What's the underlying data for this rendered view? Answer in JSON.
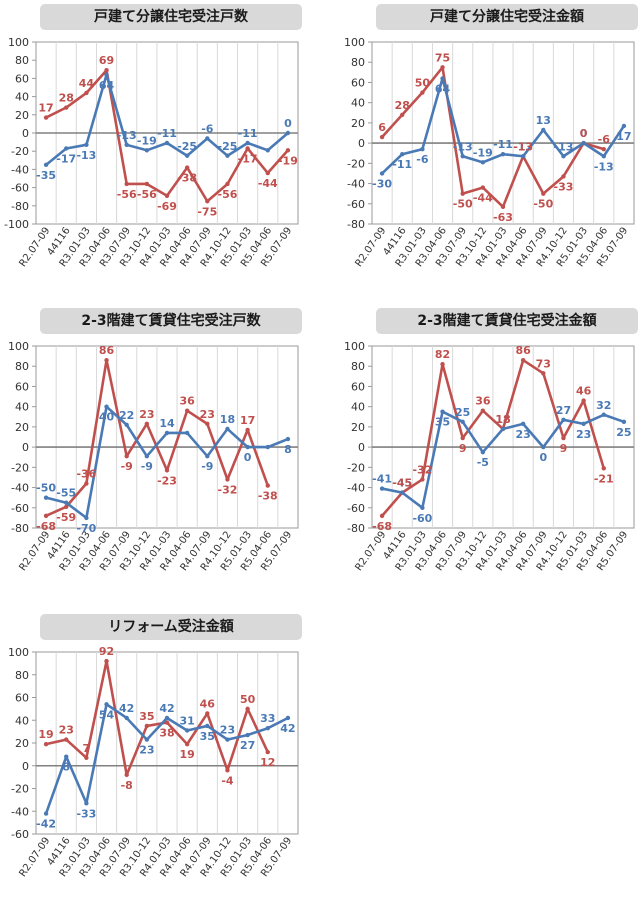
{
  "categories": [
    "R2.07-09",
    "44116",
    "R3.01-03",
    "R3.04-06",
    "R3.07-09",
    "R3.10-12",
    "R4.01-03",
    "R4.04-06",
    "R4.07-09",
    "R4.10-12",
    "R5.01-03",
    "R5.04-06",
    "R5.07-09"
  ],
  "colors": {
    "blue": "#4a7ab5",
    "red": "#c0504d"
  },
  "chart_data": [
    {
      "type": "line",
      "title": "戸建て分譲住宅受注戸数",
      "ylim": [
        -100,
        100
      ],
      "yticks": [
        -100,
        -80,
        -60,
        -40,
        -20,
        0,
        20,
        40,
        60,
        80,
        100
      ],
      "series": [
        {
          "color": "blue",
          "values": [
            -35,
            -17,
            -13,
            64,
            -13,
            -19,
            -11,
            -25,
            -6,
            -25,
            -11,
            -19,
            0
          ],
          "labels": [
            "-35",
            "-17",
            "-13",
            "64",
            "-13",
            "-19",
            "-11",
            "-25",
            "-6",
            "-25",
            "-11",
            "",
            "0"
          ]
        },
        {
          "color": "red",
          "values": [
            17,
            28,
            44,
            69,
            -56,
            -56,
            -69,
            -38,
            -75,
            -56,
            -17,
            -44,
            -19
          ],
          "labels": [
            "17",
            "28",
            "44",
            "69",
            "-56",
            "-56",
            "-69",
            "-38",
            "-75",
            "-56",
            "-17",
            "-44",
            "-19"
          ]
        }
      ]
    },
    {
      "type": "line",
      "title": "戸建て分譲住宅受注金額",
      "ylim": [
        -80,
        100
      ],
      "yticks": [
        -80,
        -60,
        -40,
        -20,
        0,
        20,
        40,
        60,
        80,
        100
      ],
      "series": [
        {
          "color": "blue",
          "values": [
            -30,
            -11,
            -6,
            64,
            -13,
            -19,
            -11,
            -13,
            13,
            -13,
            0,
            -13,
            17
          ],
          "labels": [
            "-30",
            "-11",
            "-6",
            "64",
            "-13",
            "-19",
            "-11",
            "-13",
            "13",
            "-13",
            "0",
            "-13",
            "17"
          ]
        },
        {
          "color": "red",
          "values": [
            6,
            28,
            50,
            75,
            -50,
            -44,
            -63,
            -13,
            -50,
            -33,
            0,
            -6,
            null
          ],
          "labels": [
            "6",
            "28",
            "50",
            "75",
            "-50",
            "-44",
            "-63",
            "-13",
            "-50",
            "-33",
            "0",
            "-6",
            ""
          ]
        }
      ]
    },
    {
      "type": "line",
      "title": "2-3階建て賃貸住宅受注戸数",
      "ylim": [
        -80,
        100
      ],
      "yticks": [
        -80,
        -60,
        -40,
        -20,
        0,
        20,
        40,
        60,
        80,
        100
      ],
      "series": [
        {
          "color": "blue",
          "values": [
            -50,
            -55,
            -70,
            40,
            22,
            -9,
            14,
            14,
            -9,
            18,
            0,
            0,
            8
          ],
          "labels": [
            "-50",
            "-55",
            "-70",
            "40",
            "22",
            "-9",
            "14",
            "",
            "-9",
            "18",
            "0",
            "",
            "8"
          ]
        },
        {
          "color": "red",
          "values": [
            -68,
            -59,
            -36,
            86,
            -9,
            23,
            -23,
            36,
            23,
            -32,
            17,
            -38,
            null
          ],
          "labels": [
            "-68",
            "-59",
            "-36",
            "86",
            "-9",
            "23",
            "-23",
            "36",
            "23",
            "-32",
            "17",
            "-38",
            ""
          ]
        }
      ]
    },
    {
      "type": "line",
      "title": "2-3階建て賃貸住宅受注金額",
      "ylim": [
        -80,
        100
      ],
      "yticks": [
        -80,
        -60,
        -40,
        -20,
        0,
        20,
        40,
        60,
        80,
        100
      ],
      "series": [
        {
          "color": "blue",
          "values": [
            -41,
            -45,
            -60,
            35,
            25,
            -5,
            18,
            23,
            0,
            27,
            23,
            32,
            25
          ],
          "labels": [
            "-41",
            "-45",
            "-60",
            "35",
            "25",
            "-5",
            "18",
            "23",
            "0",
            "27",
            "23",
            "32",
            "25"
          ]
        },
        {
          "color": "red",
          "values": [
            -68,
            -45,
            -32,
            82,
            9,
            36,
            18,
            86,
            73,
            9,
            46,
            -21,
            null
          ],
          "labels": [
            "-68",
            "-45",
            "-32",
            "82",
            "9",
            "36",
            "18",
            "86",
            "73",
            "9",
            "46",
            "-21",
            ""
          ]
        }
      ]
    },
    {
      "type": "line",
      "title": "リフォーム受注金額",
      "ylim": [
        -60,
        100
      ],
      "yticks": [
        -60,
        -40,
        -20,
        0,
        20,
        40,
        60,
        80,
        100
      ],
      "series": [
        {
          "color": "blue",
          "values": [
            -42,
            8,
            -33,
            54,
            42,
            23,
            42,
            31,
            35,
            23,
            27,
            33,
            42
          ],
          "labels": [
            "-42",
            "8",
            "-33",
            "54",
            "42",
            "23",
            "42",
            "31",
            "35",
            "23",
            "27",
            "33",
            "42"
          ]
        },
        {
          "color": "red",
          "values": [
            19,
            23,
            7,
            92,
            -8,
            35,
            38,
            19,
            46,
            -4,
            50,
            12,
            null
          ],
          "labels": [
            "19",
            "23",
            "7",
            "92",
            "-8",
            "35",
            "38",
            "19",
            "46",
            "-4",
            "50",
            "12",
            ""
          ]
        }
      ]
    }
  ]
}
